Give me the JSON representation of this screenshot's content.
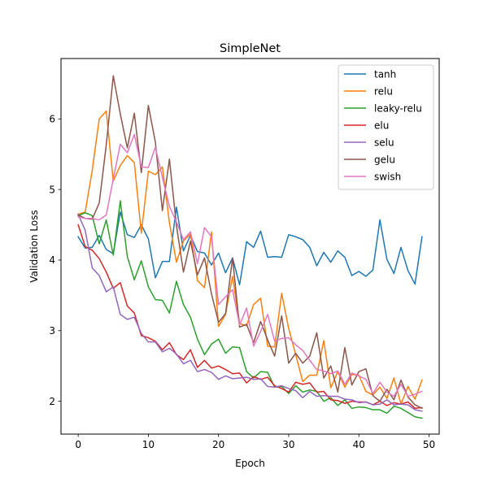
{
  "chart_data": {
    "type": "line",
    "title": "SimpleNet",
    "xlabel": "Epoch",
    "ylabel": "Validation Loss",
    "xlim": [
      -2.45,
      51.45
    ],
    "ylim": [
      1.535,
      6.855
    ],
    "xticks": [
      0,
      10,
      20,
      30,
      40,
      50
    ],
    "yticks": [
      2,
      3,
      4,
      5,
      6
    ],
    "grid": false,
    "legend": "top-right",
    "x": [
      0,
      1,
      2,
      3,
      4,
      5,
      6,
      7,
      8,
      9,
      10,
      11,
      12,
      13,
      14,
      15,
      16,
      17,
      18,
      19,
      20,
      21,
      22,
      23,
      24,
      25,
      26,
      27,
      28,
      29,
      30,
      31,
      32,
      33,
      34,
      35,
      36,
      37,
      38,
      39,
      40,
      41,
      42,
      43,
      44,
      45,
      46,
      47,
      48,
      49
    ],
    "series": [
      {
        "name": "tanh",
        "color": "#1f77b4",
        "values": [
          4.33,
          4.17,
          4.18,
          4.35,
          4.15,
          4.09,
          4.68,
          4.36,
          4.32,
          4.5,
          4.3,
          3.75,
          3.98,
          3.98,
          4.75,
          4.13,
          4.35,
          4.12,
          4.1,
          3.93,
          4.1,
          3.82,
          4.03,
          3.65,
          4.26,
          4.18,
          4.41,
          4.04,
          4.05,
          4.04,
          4.36,
          4.33,
          4.29,
          4.18,
          3.92,
          4.11,
          3.97,
          4.13,
          4.04,
          3.78,
          3.84,
          3.77,
          3.86,
          4.57,
          4.01,
          3.81,
          4.18,
          3.85,
          3.66,
          4.33
        ]
      },
      {
        "name": "relu",
        "color": "#ff7f0e",
        "values": [
          4.65,
          4.68,
          5.27,
          6.0,
          6.11,
          5.12,
          5.34,
          5.48,
          5.38,
          4.38,
          5.26,
          5.21,
          5.32,
          4.53,
          3.97,
          4.27,
          4.37,
          3.71,
          3.61,
          4.4,
          3.06,
          3.23,
          3.77,
          3.1,
          3.07,
          3.37,
          3.46,
          2.78,
          2.77,
          3.53,
          3.03,
          2.66,
          2.28,
          2.37,
          2.37,
          2.86,
          2.19,
          2.42,
          2.2,
          2.38,
          2.37,
          2.14,
          2.09,
          2.2,
          2.04,
          2.33,
          1.96,
          2.21,
          2.03,
          2.3
        ]
      },
      {
        "name": "leaky-relu",
        "color": "#2ca02c",
        "values": [
          4.63,
          4.67,
          4.63,
          4.23,
          4.57,
          4.07,
          4.84,
          4.05,
          3.72,
          3.99,
          3.62,
          3.44,
          3.43,
          3.25,
          3.7,
          3.37,
          3.19,
          2.88,
          2.66,
          2.81,
          2.88,
          2.68,
          2.77,
          2.76,
          2.42,
          2.33,
          2.42,
          2.41,
          2.2,
          2.21,
          2.11,
          2.22,
          2.13,
          2.16,
          2.14,
          2.0,
          2.05,
          1.94,
          2.02,
          1.9,
          1.92,
          1.91,
          1.88,
          1.88,
          1.83,
          1.93,
          1.9,
          1.84,
          1.78,
          1.76
        ]
      },
      {
        "name": "elu",
        "color": "#d62728",
        "values": [
          4.5,
          4.19,
          4.14,
          4.02,
          3.83,
          3.6,
          3.68,
          3.35,
          3.25,
          2.93,
          2.9,
          2.85,
          2.73,
          2.83,
          2.66,
          2.59,
          2.73,
          2.48,
          2.58,
          2.47,
          2.5,
          2.45,
          2.39,
          2.4,
          2.26,
          2.35,
          2.31,
          2.34,
          2.22,
          2.18,
          2.13,
          2.27,
          2.24,
          2.26,
          2.13,
          2.14,
          2.02,
          2.01,
          1.97,
          2.0,
          1.99,
          1.99,
          1.95,
          2.0,
          1.94,
          1.98,
          1.96,
          1.99,
          1.9,
          1.91
        ]
      },
      {
        "name": "selu",
        "color": "#9467bd",
        "values": [
          4.65,
          4.42,
          3.89,
          3.78,
          3.55,
          3.62,
          3.23,
          3.16,
          3.19,
          2.96,
          2.84,
          2.84,
          2.7,
          2.75,
          2.67,
          2.53,
          2.58,
          2.42,
          2.45,
          2.41,
          2.31,
          2.36,
          2.32,
          2.33,
          2.34,
          2.31,
          2.32,
          2.21,
          2.2,
          2.22,
          2.18,
          2.15,
          2.05,
          2.14,
          2.07,
          2.08,
          2.07,
          2.07,
          2.03,
          2.02,
          1.98,
          1.99,
          1.95,
          1.96,
          2.02,
          1.95,
          1.96,
          1.95,
          1.88,
          1.86
        ]
      },
      {
        "name": "gelu",
        "color": "#8c564b",
        "values": [
          4.64,
          4.59,
          4.58,
          4.81,
          5.63,
          6.61,
          6.07,
          5.59,
          6.08,
          5.24,
          6.19,
          5.67,
          4.7,
          5.43,
          4.49,
          3.83,
          4.27,
          3.79,
          4.03,
          3.52,
          3.12,
          3.24,
          4.03,
          3.05,
          3.09,
          2.83,
          3.13,
          2.87,
          2.64,
          3.21,
          2.54,
          2.68,
          2.54,
          2.64,
          2.97,
          2.33,
          2.5,
          2.13,
          2.76,
          2.23,
          2.42,
          2.46,
          2.08,
          2.0,
          2.17,
          2.02,
          2.3,
          2.06,
          1.95,
          1.9
        ]
      },
      {
        "name": "swish",
        "color": "#e377c2",
        "values": [
          4.61,
          4.59,
          4.59,
          4.57,
          4.64,
          5.15,
          5.64,
          5.52,
          5.78,
          5.32,
          5.31,
          5.6,
          5.17,
          4.76,
          4.54,
          4.29,
          4.4,
          3.95,
          4.46,
          4.33,
          3.37,
          3.48,
          3.58,
          3.08,
          3.32,
          2.78,
          2.99,
          3.23,
          2.85,
          2.89,
          2.9,
          2.8,
          2.72,
          2.58,
          2.45,
          2.43,
          2.39,
          2.43,
          2.24,
          2.4,
          2.36,
          2.31,
          2.11,
          2.27,
          2.13,
          2.07,
          2.24,
          2.07,
          2.1,
          2.14
        ]
      }
    ]
  }
}
